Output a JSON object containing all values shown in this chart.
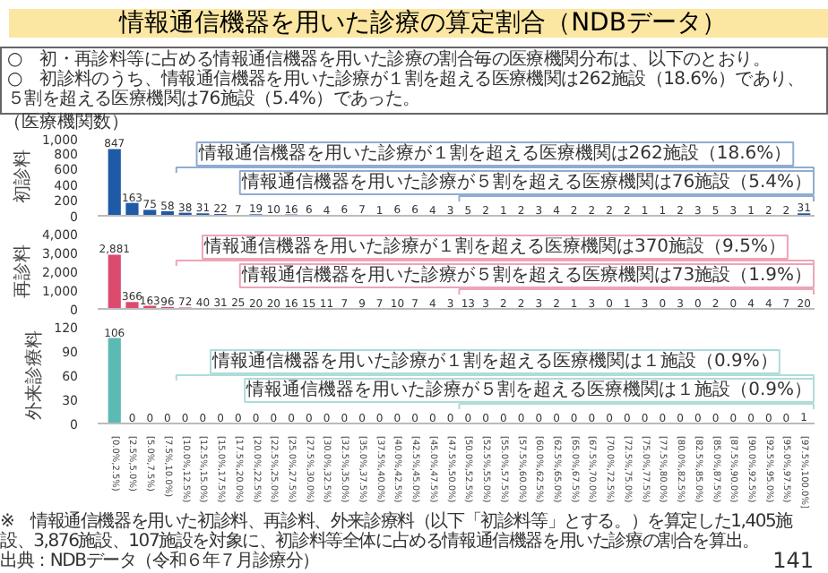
{
  "chart_data": [
    {
      "type": "bar",
      "title": "情報通信機器を用いた診療の算定割合（NDBデータ）",
      "ylabel": "初診料",
      "tick_labels": "y",
      "data_labels": true,
      "ylim": [
        0,
        1000
      ],
      "yticks": [
        0,
        200,
        400,
        600,
        800,
        {
          "value": 1000,
          "label": "1,000"
        }
      ],
      "categories": [
        null,
        null,
        null,
        null,
        null,
        null,
        null,
        null,
        null,
        null,
        null,
        null,
        null,
        null,
        null,
        null,
        null,
        null,
        null,
        null,
        null,
        null,
        null,
        null,
        null,
        null,
        null,
        null,
        null,
        null,
        null,
        null,
        null,
        null,
        null,
        null,
        null,
        null,
        null,
        null
      ],
      "series": [
        {
          "color": "#1f5aa6",
          "values": [
            847,
            163,
            75,
            58,
            38,
            31,
            22,
            7,
            19,
            10,
            16,
            6,
            4,
            6,
            7,
            1,
            6,
            6,
            4,
            3,
            5,
            2,
            1,
            2,
            3,
            4,
            2,
            2,
            2,
            2,
            1,
            1,
            2,
            3,
            5,
            3,
            1,
            2,
            2,
            31
          ]
        }
      ],
      "annotations": [
        "情報通信機器を用いた診療が１割を超える医療機関は262施設（18.6%）",
        "情報通信機器を用いた診療が５割を超える医療機関は76施設（5.4%）",
        "○　初・再診料等に占める情報通信機器を用いた診療の割合毎の医療機関分布は、以下のとおり。",
        "○　初診料のうち、情報通信機器を用いた診療が１割を超える医療機関は262施設（18.6%）であり、５割を超える医療機関は76施設（5.4%）であった。",
        "（医療機関数）"
      ]
    },
    {
      "type": "bar",
      "ylabel": "再診料",
      "tick_labels": "y",
      "ylim": [
        0,
        4000
      ],
      "yticks": [
        0,
        {
          "value": 1000,
          "label": "1,000"
        },
        {
          "value": 2000,
          "label": "2,000"
        },
        {
          "value": 3000,
          "label": "3,000"
        },
        {
          "value": 4000,
          "label": "4,000"
        }
      ],
      "categories": [
        null,
        null,
        null,
        null,
        null,
        null,
        null,
        null,
        null,
        null,
        null,
        null,
        null,
        null,
        null,
        null,
        null,
        null,
        null,
        null,
        null,
        null,
        null,
        null,
        null,
        null,
        null,
        null,
        null,
        null,
        null,
        null,
        null,
        null,
        null,
        null,
        null,
        null,
        null,
        null
      ],
      "series": [
        {
          "color": "#dc4b6e",
          "values": [
            2881,
            366,
            163,
            96,
            72,
            40,
            31,
            25,
            20,
            20,
            16,
            15,
            11,
            7,
            9,
            7,
            10,
            7,
            4,
            3,
            13,
            3,
            2,
            2,
            3,
            2,
            1,
            3,
            0,
            1,
            3,
            0,
            3,
            0,
            2,
            0,
            4,
            4,
            7,
            20
          ],
          "value_labels": [
            "2,881",
            "366",
            "163",
            "96",
            "72",
            "40",
            "31",
            "25",
            "20",
            "20",
            "16",
            "15",
            "11",
            "7",
            "9",
            "7",
            "10",
            "7",
            "4",
            "3",
            "13",
            "3",
            "2",
            "2",
            "3",
            "2",
            "1",
            "3",
            "0",
            "1",
            "3",
            "0",
            "3",
            "0",
            "2",
            "0",
            "4",
            "4",
            "7",
            "20"
          ]
        }
      ],
      "annotations": [
        "情報通信機器を用いた診療が１割を超える医療機関は370施設（9.5%）",
        "情報通信機器を用いた診療が５割を超える医療機関は73施設（1.9%）"
      ]
    },
    {
      "type": "bar",
      "ylabel": "外来診療料",
      "data_labels": true,
      "ylim": [
        0,
        120
      ],
      "yticks": [
        0,
        30,
        60,
        90,
        120
      ],
      "categories": [
        "[0.0%,2.5%)",
        "[2.5%,5.0%)",
        "[5.0%,7.5%)",
        "[7.5%,10.0%)",
        "[10.0%,12.5%)",
        "[12.5%,15.0%)",
        "[15.0%,17.5%)",
        "[17.5%,20.0%)",
        "[20.0%,22.5%)",
        "[22.5%,25.0%)",
        "[25.0%,27.5%)",
        "[27.5%,30.0%)",
        "[30.0%,32.5%)",
        "[32.5%,35.0%)",
        "[35.0%,37.5%)",
        "[37.5%,40.0%)",
        "[40.0%,42.5%)",
        "[42.5%,45.0%)",
        "[45.0%,47.5%)",
        "[47.5%,50.0%)",
        "[50.0%,52.5%)",
        "[52.5%,55.0%)",
        "[55.0%,57.5%)",
        "[57.5%,60.0%)",
        "[60.0%,62.5%)",
        "[62.5%,65.0%)",
        "[65.0%,67.5%)",
        "[67.5%,70.0%)",
        "[70.0%,72.5%)",
        "[72.5%,75.0%)",
        "[75.0%,77.5%)",
        "[77.5%,80.0%)",
        "[80.0%,82.5%)",
        "[82.5%,85.0%)",
        "[85.0%,87.5%)",
        "[87.5%,90.0%)",
        "[90.0%,92.5%)",
        "[92.5%,95.0%)",
        "[95.0%,97.5%)",
        "[97.5%,100.0%]"
      ],
      "series": [
        {
          "color": "#5bbab4",
          "values": [
            106,
            0,
            0,
            0,
            0,
            0,
            0,
            0,
            0,
            0,
            0,
            0,
            0,
            0,
            0,
            0,
            0,
            0,
            0,
            0,
            0,
            0,
            0,
            0,
            0,
            0,
            0,
            0,
            0,
            0,
            0,
            0,
            0,
            0,
            0,
            0,
            0,
            0,
            0,
            1
          ]
        }
      ],
      "annotations": [
        "情報通信機器を用いた診療が１割を超える医療機関は１施設（0.9%）",
        "情報通信機器を用いた診療が５割を超える医療機関は１施設（0.9%）",
        "※　情報通信機器を用いた初診料、再診料、外来診療料（以下「初診料等」とする。）を算定した1,405施設、3,876施設、107施設を対象に、初診料等全体に占める情報通信機器を用いた診療の割合を算出。",
        "出典：NDBデータ（令和６年７月診療分）",
        "141"
      ]
    }
  ]
}
